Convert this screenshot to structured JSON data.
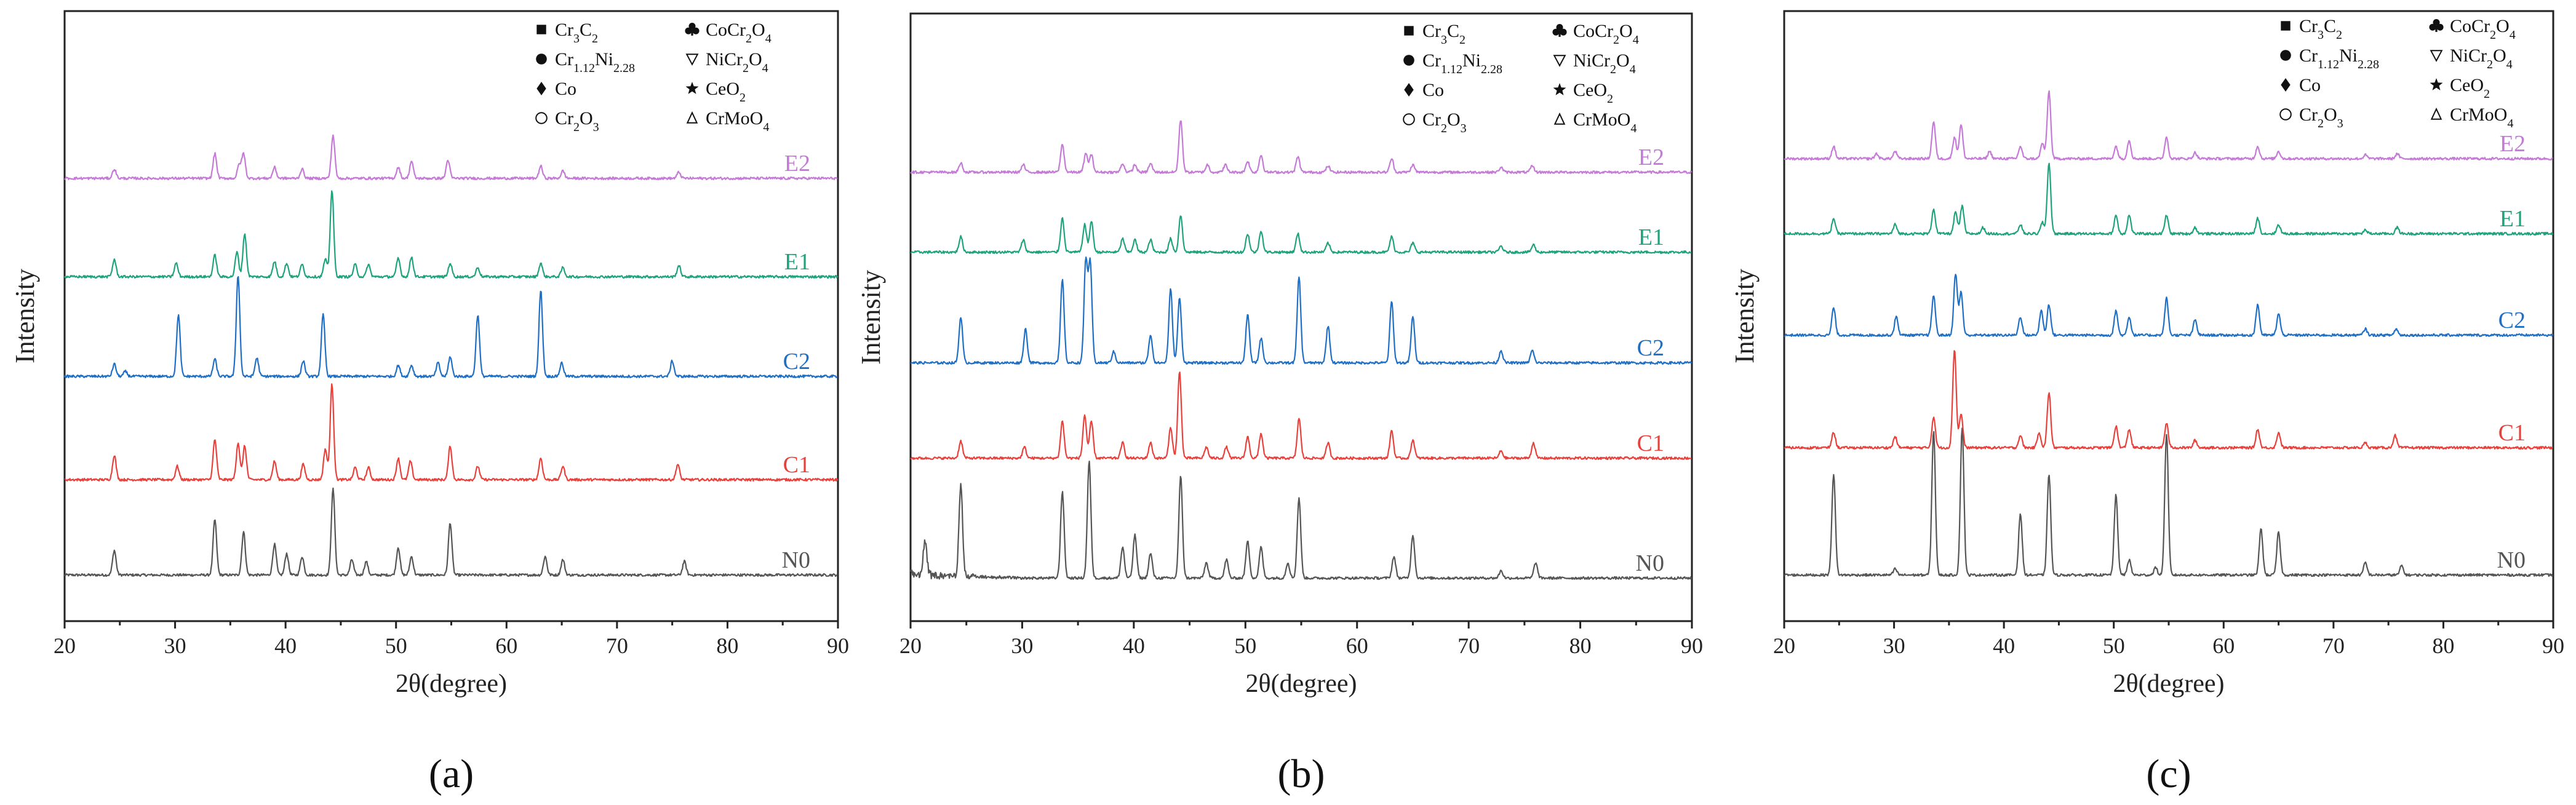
{
  "chart_data": [
    {
      "type": "line",
      "panel_label": "(a)",
      "xlabel": "2θ(degree)",
      "ylabel": "Intensity",
      "xlim": [
        20,
        90
      ],
      "xticks": [
        "20",
        "30",
        "40",
        "50",
        "60",
        "70",
        "80",
        "90"
      ],
      "legend": [
        "Cr3C2",
        "Cr1.12Ni2.28",
        "Co",
        "Cr2O3",
        "CoCr2O4",
        "NiCr2O4",
        "CeO2",
        "CrMoO4"
      ],
      "series": [
        {
          "name": "N0",
          "color": "#555555",
          "peaks": [
            [
              24.5,
              40
            ],
            [
              33.6,
              90
            ],
            [
              36.2,
              70
            ],
            [
              39,
              50
            ],
            [
              40.1,
              35
            ],
            [
              41.5,
              30
            ],
            [
              44.3,
              140
            ],
            [
              46,
              25
            ],
            [
              47.3,
              22
            ],
            [
              50.2,
              45
            ],
            [
              51.4,
              30
            ],
            [
              54.9,
              85
            ],
            [
              63.5,
              30
            ],
            [
              65.1,
              25
            ],
            [
              76.1,
              22
            ]
          ]
        },
        {
          "name": "C1",
          "color": "#e8413c",
          "peaks": [
            [
              24.5,
              40
            ],
            [
              30.2,
              22
            ],
            [
              33.6,
              65
            ],
            [
              35.7,
              60
            ],
            [
              36.3,
              55
            ],
            [
              39,
              30
            ],
            [
              41.6,
              25
            ],
            [
              43.6,
              50
            ],
            [
              44.2,
              155
            ],
            [
              46.3,
              20
            ],
            [
              47.5,
              20
            ],
            [
              50.2,
              35
            ],
            [
              51.3,
              30
            ],
            [
              54.9,
              55
            ],
            [
              57.4,
              22
            ],
            [
              63.1,
              35
            ],
            [
              65.1,
              22
            ],
            [
              75.5,
              25
            ]
          ]
        },
        {
          "name": "C2",
          "color": "#1f6fc5",
          "peaks": [
            [
              24.5,
              20
            ],
            [
              25.5,
              8
            ],
            [
              30.3,
              100
            ],
            [
              33.6,
              28
            ],
            [
              35.7,
              165
            ],
            [
              37.4,
              30
            ],
            [
              41.6,
              25
            ],
            [
              43.4,
              100
            ],
            [
              50.2,
              18
            ],
            [
              51.4,
              18
            ],
            [
              53.8,
              22
            ],
            [
              54.9,
              32
            ],
            [
              57.4,
              100
            ],
            [
              63.1,
              140
            ],
            [
              65,
              22
            ],
            [
              75,
              25
            ]
          ]
        },
        {
          "name": "E1",
          "color": "#1fa37c",
          "peaks": [
            [
              24.5,
              28
            ],
            [
              30.1,
              22
            ],
            [
              33.6,
              35
            ],
            [
              35.6,
              40
            ],
            [
              36.3,
              70
            ],
            [
              39,
              25
            ],
            [
              40.1,
              22
            ],
            [
              41.5,
              20
            ],
            [
              43.6,
              28
            ],
            [
              44.2,
              140
            ],
            [
              46.3,
              20
            ],
            [
              47.5,
              20
            ],
            [
              50.2,
              30
            ],
            [
              51.4,
              32
            ],
            [
              54.9,
              22
            ],
            [
              57.4,
              15
            ],
            [
              63.1,
              22
            ],
            [
              65.1,
              15
            ],
            [
              75.6,
              18
            ]
          ]
        },
        {
          "name": "E2",
          "color": "#c47ad6",
          "peaks": [
            [
              24.5,
              15
            ],
            [
              33.6,
              40
            ],
            [
              35.8,
              22
            ],
            [
              36.2,
              40
            ],
            [
              39,
              18
            ],
            [
              41.5,
              15
            ],
            [
              44.3,
              70
            ],
            [
              50.2,
              18
            ],
            [
              51.4,
              28
            ],
            [
              54.7,
              30
            ],
            [
              63.1,
              20
            ],
            [
              65.1,
              12
            ],
            [
              75.6,
              10
            ]
          ]
        }
      ]
    },
    {
      "type": "line",
      "panel_label": "(b)",
      "xlabel": "2θ(degree)",
      "ylabel": "Intensity",
      "xlim": [
        20,
        90
      ],
      "xticks": [
        "20",
        "30",
        "40",
        "50",
        "60",
        "70",
        "80",
        "90"
      ],
      "legend": [
        "Cr3C2",
        "Cr1.12Ni2.28",
        "Co",
        "Cr2O3",
        "CoCr2O4",
        "NiCr2O4",
        "CeO2",
        "CrMoO4"
      ],
      "series": [
        {
          "name": "N0",
          "color": "#555555",
          "peaks": [
            [
              21.3,
              55
            ],
            [
              24.5,
              150
            ],
            [
              33.6,
              140
            ],
            [
              36,
              190
            ],
            [
              39,
              50
            ],
            [
              40.1,
              70
            ],
            [
              41.5,
              40
            ],
            [
              44.2,
              165
            ],
            [
              46.5,
              25
            ],
            [
              48.3,
              30
            ],
            [
              50.2,
              60
            ],
            [
              51.4,
              50
            ],
            [
              53.8,
              25
            ],
            [
              54.8,
              130
            ],
            [
              63.3,
              35
            ],
            [
              65,
              70
            ],
            [
              72.9,
              12
            ],
            [
              76,
              25
            ]
          ]
        },
        {
          "name": "C1",
          "color": "#e8413c",
          "peaks": [
            [
              24.5,
              28
            ],
            [
              30.2,
              18
            ],
            [
              33.6,
              60
            ],
            [
              35.6,
              70
            ],
            [
              36.2,
              60
            ],
            [
              39,
              25
            ],
            [
              41.5,
              25
            ],
            [
              43.3,
              50
            ],
            [
              44.1,
              140
            ],
            [
              46.5,
              18
            ],
            [
              48.3,
              18
            ],
            [
              50.2,
              35
            ],
            [
              51.4,
              40
            ],
            [
              54.8,
              65
            ],
            [
              57.4,
              25
            ],
            [
              63.1,
              45
            ],
            [
              65,
              30
            ],
            [
              72.9,
              12
            ],
            [
              75.8,
              25
            ]
          ]
        },
        {
          "name": "C2",
          "color": "#1f6fc5",
          "peaks": [
            [
              24.5,
              75
            ],
            [
              30.3,
              55
            ],
            [
              33.6,
              135
            ],
            [
              35.7,
              165
            ],
            [
              36.1,
              160
            ],
            [
              38.2,
              18
            ],
            [
              41.5,
              45
            ],
            [
              43.3,
              120
            ],
            [
              44.1,
              105
            ],
            [
              50.2,
              80
            ],
            [
              51.4,
              40
            ],
            [
              54.8,
              140
            ],
            [
              57.4,
              60
            ],
            [
              63.1,
              100
            ],
            [
              65,
              75
            ],
            [
              72.9,
              20
            ],
            [
              75.7,
              20
            ]
          ]
        },
        {
          "name": "E1",
          "color": "#1fa37c",
          "peaks": [
            [
              24.5,
              25
            ],
            [
              30.1,
              20
            ],
            [
              33.6,
              55
            ],
            [
              35.6,
              45
            ],
            [
              36.2,
              50
            ],
            [
              39,
              22
            ],
            [
              40.1,
              20
            ],
            [
              41.5,
              20
            ],
            [
              43.3,
              22
            ],
            [
              44.2,
              60
            ],
            [
              50.2,
              30
            ],
            [
              51.4,
              35
            ],
            [
              54.7,
              30
            ],
            [
              57.4,
              15
            ],
            [
              63.1,
              25
            ],
            [
              65,
              15
            ],
            [
              72.9,
              10
            ],
            [
              75.8,
              12
            ]
          ]
        },
        {
          "name": "E2",
          "color": "#c47ad6",
          "peaks": [
            [
              24.5,
              15
            ],
            [
              30.1,
              12
            ],
            [
              33.6,
              45
            ],
            [
              35.7,
              30
            ],
            [
              36.2,
              28
            ],
            [
              39,
              14
            ],
            [
              40.1,
              12
            ],
            [
              41.5,
              14
            ],
            [
              44.2,
              85
            ],
            [
              46.6,
              12
            ],
            [
              48.2,
              12
            ],
            [
              50.2,
              18
            ],
            [
              51.4,
              28
            ],
            [
              54.7,
              25
            ],
            [
              57.4,
              10
            ],
            [
              63.1,
              22
            ],
            [
              65,
              12
            ],
            [
              72.9,
              8
            ],
            [
              75.7,
              10
            ]
          ]
        }
      ]
    },
    {
      "type": "line",
      "panel_label": "(c)",
      "xlabel": "2θ(degree)",
      "ylabel": "Intensity",
      "xlim": [
        20,
        90
      ],
      "xticks": [
        "20",
        "30",
        "40",
        "50",
        "60",
        "70",
        "80",
        "90"
      ],
      "legend": [
        "Cr3C2",
        "Cr1.12Ni2.28",
        "Co",
        "Cr2O3",
        "CoCr2O4",
        "NiCr2O4",
        "CeO2",
        "CrMoO4"
      ],
      "series": [
        {
          "name": "N0",
          "color": "#555555",
          "peaks": [
            [
              24.5,
              165
            ],
            [
              30.1,
              10
            ],
            [
              33.6,
              235
            ],
            [
              36.2,
              240
            ],
            [
              41.5,
              100
            ],
            [
              44.1,
              165
            ],
            [
              50.2,
              130
            ],
            [
              51.4,
              25
            ],
            [
              53.8,
              12
            ],
            [
              54.8,
              230
            ],
            [
              63.4,
              75
            ],
            [
              65,
              70
            ],
            [
              72.9,
              20
            ],
            [
              76.2,
              15
            ]
          ]
        },
        {
          "name": "C1",
          "color": "#e8413c",
          "peaks": [
            [
              24.5,
              25
            ],
            [
              30.1,
              18
            ],
            [
              33.6,
              50
            ],
            [
              35.5,
              160
            ],
            [
              36.1,
              55
            ],
            [
              41.5,
              20
            ],
            [
              43.2,
              25
            ],
            [
              44.1,
              90
            ],
            [
              50.2,
              35
            ],
            [
              51.4,
              30
            ],
            [
              54.8,
              40
            ],
            [
              57.4,
              12
            ],
            [
              63.1,
              30
            ],
            [
              65,
              25
            ],
            [
              72.9,
              8
            ],
            [
              75.6,
              20
            ]
          ]
        },
        {
          "name": "C2",
          "color": "#1f6fc5",
          "peaks": [
            [
              24.5,
              45
            ],
            [
              30.2,
              30
            ],
            [
              33.6,
              65
            ],
            [
              35.6,
              100
            ],
            [
              36.1,
              70
            ],
            [
              41.5,
              30
            ],
            [
              43.4,
              40
            ],
            [
              44.1,
              50
            ],
            [
              50.2,
              40
            ],
            [
              51.4,
              30
            ],
            [
              54.8,
              60
            ],
            [
              57.4,
              25
            ],
            [
              63.1,
              50
            ],
            [
              65,
              35
            ],
            [
              72.9,
              10
            ],
            [
              75.7,
              10
            ]
          ]
        },
        {
          "name": "E1",
          "color": "#1fa37c",
          "peaks": [
            [
              24.5,
              25
            ],
            [
              30.1,
              15
            ],
            [
              33.6,
              40
            ],
            [
              35.6,
              35
            ],
            [
              36.2,
              45
            ],
            [
              38.1,
              10
            ],
            [
              41.5,
              15
            ],
            [
              43.5,
              18
            ],
            [
              44.1,
              115
            ],
            [
              50.2,
              30
            ],
            [
              51.4,
              30
            ],
            [
              54.8,
              30
            ],
            [
              57.4,
              10
            ],
            [
              63.1,
              25
            ],
            [
              65,
              15
            ],
            [
              72.9,
              6
            ],
            [
              75.8,
              10
            ]
          ]
        },
        {
          "name": "E2",
          "color": "#c47ad6",
          "peaks": [
            [
              24.5,
              20
            ],
            [
              28.4,
              8
            ],
            [
              30.1,
              12
            ],
            [
              33.6,
              60
            ],
            [
              35.5,
              35
            ],
            [
              36.1,
              55
            ],
            [
              38.7,
              12
            ],
            [
              41.5,
              20
            ],
            [
              43.5,
              25
            ],
            [
              44.1,
              110
            ],
            [
              50.2,
              20
            ],
            [
              51.4,
              30
            ],
            [
              54.8,
              35
            ],
            [
              57.4,
              10
            ],
            [
              63.1,
              20
            ],
            [
              65,
              12
            ],
            [
              72.9,
              6
            ],
            [
              75.8,
              8
            ]
          ]
        }
      ]
    }
  ]
}
